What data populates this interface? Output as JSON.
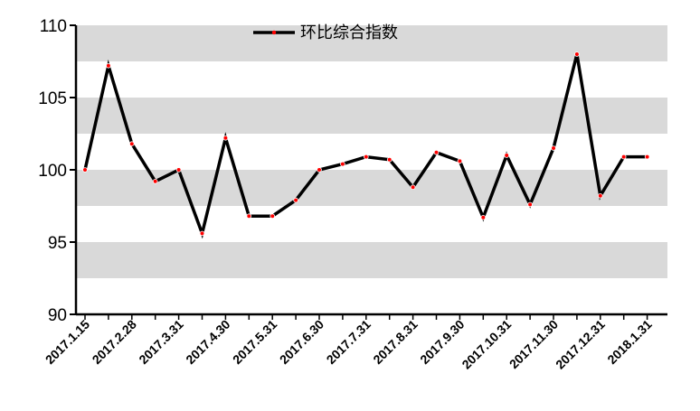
{
  "chart_data": {
    "type": "line",
    "title": "",
    "xlabel": "",
    "ylabel": "",
    "ylim": [
      90,
      110
    ],
    "y_ticks": [
      90,
      95,
      100,
      105,
      110
    ],
    "x_tick_labels": [
      "2017.1.15",
      "2017.2.28",
      "2017.3.31",
      "2017.4.30",
      "2017.5.31",
      "2017.6.30",
      "2017.7.31",
      "2017.8.31",
      "2017.9.30",
      "2017.10.31",
      "2017.11.30",
      "2017.12.31",
      "2018.1.31"
    ],
    "grid": "alternating horizontal bands",
    "legend_position": "top-center",
    "series": [
      {
        "name": "环比综合指数",
        "color": "#000000",
        "marker_color": "#ff0000",
        "values": [
          100.0,
          107.2,
          101.8,
          99.2,
          100.0,
          95.6,
          102.2,
          96.8,
          96.8,
          97.9,
          100.0,
          100.4,
          100.9,
          100.7,
          98.8,
          101.2,
          100.6,
          96.7,
          101.0,
          97.6,
          101.5,
          108.0,
          98.2,
          100.9,
          100.9
        ]
      }
    ]
  }
}
